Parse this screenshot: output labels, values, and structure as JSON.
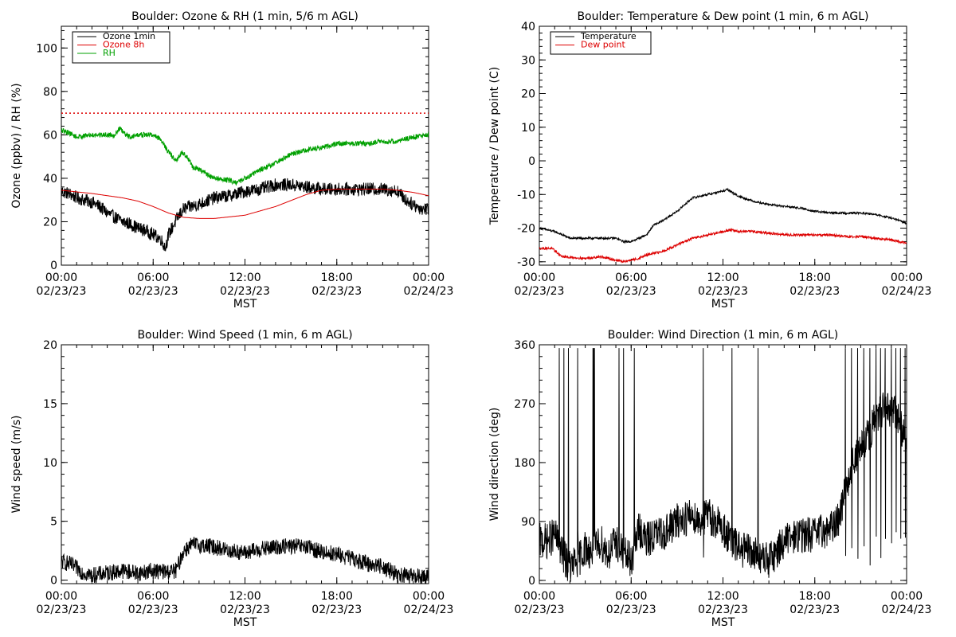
{
  "chart_data": [
    {
      "type": "line",
      "title": "Boulder: Ozone & RH (1 min, 5/6 m AGL)",
      "xlabel": "MST",
      "ylabel": "Ozone (ppbv) / RH (%)",
      "xlim": [
        0,
        24
      ],
      "ylim": [
        0,
        110
      ],
      "yticks": [
        0,
        20,
        40,
        60,
        80,
        100
      ],
      "xticks": [
        {
          "hour": 0,
          "time": "00:00",
          "date": "02/23/23"
        },
        {
          "hour": 6,
          "time": "06:00",
          "date": "02/23/23"
        },
        {
          "hour": 12,
          "time": "12:00",
          "date": "02/23/23"
        },
        {
          "hour": 18,
          "time": "18:00",
          "date": "02/23/23"
        },
        {
          "hour": 24,
          "time": "00:00",
          "date": "02/24/23"
        }
      ],
      "legend": {
        "placement": "top-left"
      },
      "reference_line": {
        "y": 70,
        "color": "#dd0000",
        "style": "dotted"
      },
      "series": [
        {
          "name": "Ozone 1min",
          "color": "#000000",
          "noise": 3,
          "x": [
            0,
            0.5,
            1,
            1.5,
            2,
            2.5,
            3,
            3.5,
            4,
            4.5,
            5,
            5.5,
            6,
            6.5,
            6.8,
            7,
            7.3,
            7.6,
            8,
            9,
            10,
            11,
            12,
            13,
            14,
            15,
            16,
            17,
            18,
            19,
            20,
            21,
            22,
            22.5,
            23,
            23.5,
            24
          ],
          "y": [
            34,
            33,
            31,
            30,
            29,
            27,
            24,
            22,
            20,
            19,
            17,
            16,
            14,
            12,
            8,
            14,
            18,
            22,
            26,
            28,
            31,
            32,
            34,
            35,
            37,
            37,
            36,
            35,
            35,
            35,
            35,
            35,
            34,
            30,
            28,
            26,
            26
          ]
        },
        {
          "name": "Ozone 8h",
          "color": "#dd0000",
          "noise": 0,
          "x": [
            0,
            2,
            4,
            5,
            6,
            7,
            8,
            9,
            10,
            12,
            14,
            16,
            17,
            18,
            20,
            21,
            22,
            23,
            24
          ],
          "y": [
            34.5,
            33,
            31,
            29.5,
            27,
            24,
            22,
            21.5,
            21.5,
            23,
            27,
            32.5,
            34.5,
            35,
            35,
            35,
            34.5,
            33.5,
            32
          ]
        },
        {
          "name": "RH",
          "color": "#00a000",
          "noise": 1.2,
          "x": [
            0,
            0.5,
            1,
            2,
            3,
            3.5,
            3.8,
            4.2,
            4.5,
            5,
            6,
            6.5,
            7,
            7.5,
            7.9,
            8.2,
            8.6,
            9,
            10,
            11,
            11.5,
            12,
            13,
            14,
            15,
            16,
            17,
            18,
            19,
            20,
            21,
            22,
            23,
            24
          ],
          "y": [
            62,
            61,
            59,
            60,
            60,
            60,
            63,
            60,
            59,
            60,
            60,
            58,
            52,
            48,
            52,
            50,
            45,
            44,
            40,
            39,
            38,
            40,
            44,
            47,
            51,
            53,
            54,
            56,
            56,
            56,
            57,
            57,
            59,
            60
          ]
        }
      ]
    },
    {
      "type": "line",
      "title": "Boulder: Temperature & Dew point (1 min, 6 m AGL)",
      "xlabel": "MST",
      "ylabel": "Temperature / Dew point (C)",
      "xlim": [
        0,
        24
      ],
      "ylim": [
        -31,
        40
      ],
      "yticks": [
        -30,
        -20,
        -10,
        0,
        10,
        20,
        30,
        40
      ],
      "xticks": [
        {
          "hour": 0,
          "time": "00:00",
          "date": "02/23/23"
        },
        {
          "hour": 6,
          "time": "06:00",
          "date": "02/23/23"
        },
        {
          "hour": 12,
          "time": "12:00",
          "date": "02/23/23"
        },
        {
          "hour": 18,
          "time": "18:00",
          "date": "02/23/23"
        },
        {
          "hour": 24,
          "time": "00:00",
          "date": "02/24/23"
        }
      ],
      "legend": {
        "placement": "top-left"
      },
      "series": [
        {
          "name": "Temperature",
          "color": "#000000",
          "noise": 0.3,
          "x": [
            0,
            1,
            2,
            3,
            4,
            5,
            5.5,
            6,
            6.5,
            7,
            7.5,
            8,
            9,
            10,
            11,
            12,
            12.3,
            13,
            14,
            15,
            16,
            17,
            18,
            19,
            20,
            21,
            22,
            23,
            24
          ],
          "y": [
            -20,
            -21,
            -23,
            -23,
            -23,
            -23,
            -24,
            -24,
            -23,
            -22,
            -19,
            -18,
            -15,
            -11,
            -10,
            -9,
            -8.5,
            -10.5,
            -12,
            -13,
            -13.5,
            -14,
            -15,
            -15.5,
            -15.5,
            -15.5,
            -16,
            -17,
            -18.5
          ]
        },
        {
          "name": "Dew point",
          "color": "#dd0000",
          "noise": 0.35,
          "x": [
            0,
            0.8,
            1.5,
            3,
            4,
            5,
            5.5,
            6,
            6.5,
            7,
            8,
            9,
            10,
            11,
            12,
            12.5,
            13,
            14,
            15,
            16,
            17,
            18,
            19,
            20,
            21,
            22,
            23,
            24
          ],
          "y": [
            -26,
            -26,
            -28.5,
            -29,
            -28.5,
            -29.5,
            -30,
            -29.5,
            -29,
            -28,
            -27,
            -25,
            -23,
            -22,
            -21,
            -20.5,
            -21,
            -21,
            -21.5,
            -22,
            -22,
            -22,
            -22,
            -22.5,
            -22.5,
            -23,
            -23.5,
            -24.5
          ]
        }
      ]
    },
    {
      "type": "line",
      "title": "Boulder: Wind Speed (1 min, 6 m AGL)",
      "xlabel": "MST",
      "ylabel": "Wind speed (m/s)",
      "xlim": [
        0,
        24
      ],
      "ylim": [
        -0.3,
        20
      ],
      "yticks": [
        0,
        5,
        10,
        15,
        20
      ],
      "xticks": [
        {
          "hour": 0,
          "time": "00:00",
          "date": "02/23/23"
        },
        {
          "hour": 6,
          "time": "06:00",
          "date": "02/23/23"
        },
        {
          "hour": 12,
          "time": "12:00",
          "date": "02/23/23"
        },
        {
          "hour": 18,
          "time": "18:00",
          "date": "02/23/23"
        },
        {
          "hour": 24,
          "time": "00:00",
          "date": "02/24/23"
        }
      ],
      "series": [
        {
          "name": "",
          "color": "#000000",
          "noise": 0.7,
          "x": [
            0,
            0.5,
            1,
            1.5,
            2,
            3,
            4,
            5,
            6,
            7,
            7.5,
            8,
            8.5,
            9,
            10,
            11,
            12,
            13,
            14,
            15,
            16,
            17,
            18,
            19,
            20,
            21,
            21.5,
            22,
            23,
            24
          ],
          "y": [
            1.6,
            1.4,
            1,
            0.6,
            0.4,
            0.6,
            0.8,
            0.6,
            0.8,
            0.7,
            0.8,
            2.5,
            3,
            3,
            2.8,
            2.5,
            2.3,
            2.6,
            2.8,
            2.9,
            2.8,
            2.4,
            2.2,
            1.8,
            1.4,
            1.2,
            0.8,
            0.4,
            0.3,
            0.3
          ]
        }
      ]
    },
    {
      "type": "line",
      "title": "Boulder: Wind Direction (1 min, 6 m AGL)",
      "xlabel": "MST",
      "ylabel": "Wind direction (deg)",
      "xlim": [
        0,
        24
      ],
      "ylim": [
        -5,
        360
      ],
      "yticks": [
        0,
        90,
        180,
        270,
        360
      ],
      "xticks": [
        {
          "hour": 0,
          "time": "00:00",
          "date": "02/23/23"
        },
        {
          "hour": 6,
          "time": "06:00",
          "date": "02/23/23"
        },
        {
          "hour": 12,
          "time": "12:00",
          "date": "02/23/23"
        },
        {
          "hour": 18,
          "time": "18:00",
          "date": "02/23/23"
        },
        {
          "hour": 24,
          "time": "00:00",
          "date": "02/24/23"
        }
      ],
      "series": [
        {
          "name": "",
          "color": "#000000",
          "noise": 28,
          "spikes": [
            1.3,
            1.6,
            1.9,
            2.5,
            3.5,
            3.55,
            3.6,
            5.2,
            5.5,
            6.2,
            10.7,
            12.6,
            14.3,
            20.0,
            20.4,
            20.8,
            21.2,
            21.6,
            22.0,
            22.3,
            22.6,
            23.0,
            23.3,
            23.6,
            23.9
          ],
          "x": [
            0,
            0.5,
            1,
            1.5,
            2,
            2.5,
            3,
            3.5,
            4,
            4.5,
            5,
            5.5,
            6,
            6.5,
            7,
            7.5,
            8,
            9,
            10,
            10.5,
            11,
            12,
            12.5,
            13,
            14,
            15,
            16,
            17,
            18,
            19,
            19.5,
            20,
            20.5,
            21,
            21.5,
            22,
            22.5,
            23,
            23.5,
            24
          ],
          "y": [
            60,
            60,
            70,
            40,
            20,
            30,
            50,
            40,
            60,
            40,
            60,
            40,
            30,
            80,
            60,
            70,
            70,
            90,
            100,
            90,
            100,
            80,
            60,
            50,
            40,
            30,
            60,
            70,
            70,
            80,
            90,
            140,
            180,
            200,
            220,
            250,
            260,
            260,
            250,
            200
          ]
        }
      ]
    }
  ]
}
